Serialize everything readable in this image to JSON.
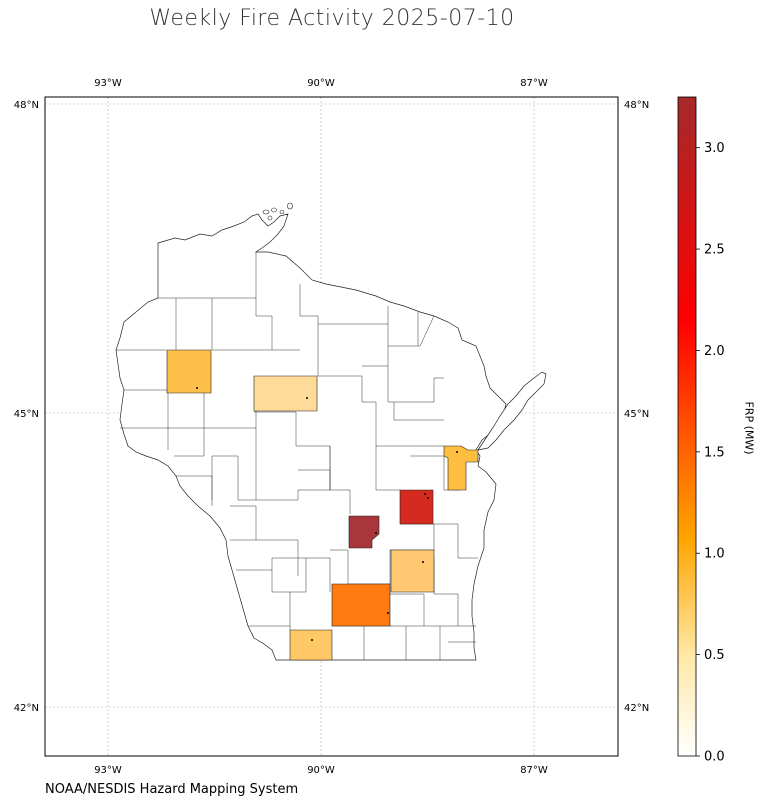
{
  "title": "Weekly Fire Activity 2025-07-10",
  "source": "NOAA/NESDIS Hazard Mapping System",
  "map": {
    "region": "Wisconsin",
    "projection": "PlateCarree",
    "lon_range": [
      -93.9,
      -85.85
    ],
    "lat_range": [
      41.55,
      48.1
    ],
    "gridlines": true,
    "lon_ticks": [
      {
        "value": -93,
        "label": "93°W"
      },
      {
        "value": -90,
        "label": "90°W"
      },
      {
        "value": -87,
        "label": "87°W"
      }
    ],
    "lat_ticks": [
      {
        "value": 48,
        "label": "48°N"
      },
      {
        "value": 45,
        "label": "45°N"
      },
      {
        "value": 42,
        "label": "42°N"
      }
    ]
  },
  "colorbar": {
    "label": "FRP (MW)",
    "min": 0,
    "max": 3.25,
    "ticks": [
      {
        "value": 0,
        "label": "0.0"
      },
      {
        "value": 0.5,
        "label": "0.5"
      },
      {
        "value": 1.0,
        "label": "1.0"
      },
      {
        "value": 1.5,
        "label": "1.5"
      },
      {
        "value": 2.0,
        "label": "2.0"
      },
      {
        "value": 2.5,
        "label": "2.5"
      },
      {
        "value": 3.0,
        "label": "3.0"
      }
    ],
    "colors": {
      "c0": "#ffffff",
      "c1": "#ffe9a8",
      "c2": "#ffa500",
      "c3": "#ff0000",
      "c4": "#a52a2a"
    }
  },
  "fire_counties": [
    {
      "area": "Polk",
      "frp": 0.75,
      "fire_points": [
        [
          -91.55,
          45.25
        ]
      ]
    },
    {
      "area": "Marathon",
      "frp": 0.4,
      "fire_points": [
        [
          -90.2,
          45.15
        ]
      ]
    },
    {
      "area": "Brown",
      "frp": 0.8,
      "fire_points": [
        [
          -88.05,
          44.6
        ]
      ]
    },
    {
      "area": "Winnebago",
      "frp": 2.65,
      "fire_points": [
        [
          -88.55,
          44.2
        ],
        [
          -88.5,
          44.16
        ]
      ]
    },
    {
      "area": "Marquette",
      "frp": 3.25,
      "fire_points": [
        [
          -89.3,
          43.85
        ]
      ]
    },
    {
      "area": "Dodge",
      "frp": 0.6,
      "fire_points": [
        [
          -88.7,
          43.55
        ]
      ]
    },
    {
      "area": "Dane",
      "frp": 1.6,
      "fire_points": [
        [
          -89.4,
          43.15
        ]
      ]
    },
    {
      "area": "Green",
      "frp": 0.7,
      "fire_points": [
        [
          -89.9,
          42.7
        ]
      ]
    }
  ]
}
